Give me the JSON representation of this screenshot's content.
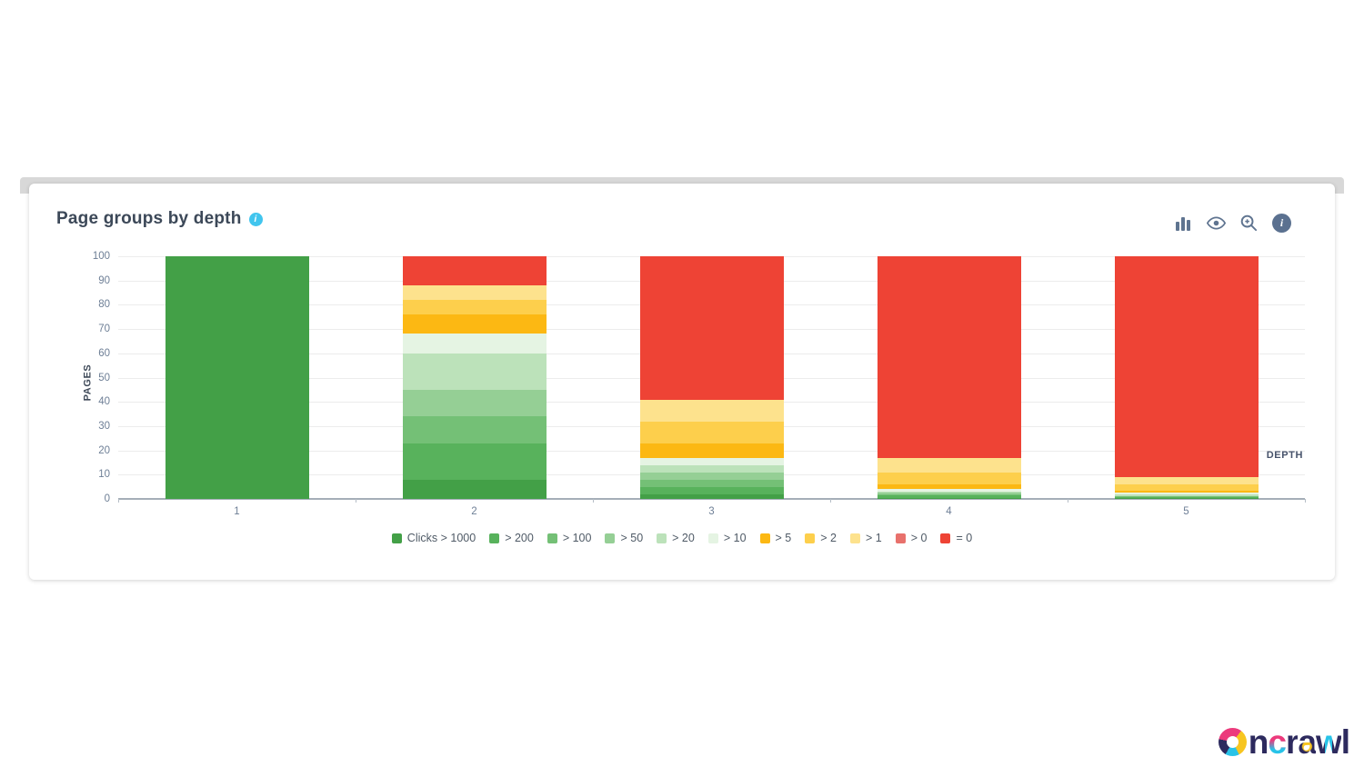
{
  "header": {
    "title": "Page groups by depth",
    "info_icon": "i"
  },
  "toolbar": {
    "icons": [
      "bar-chart-icon",
      "eye-icon",
      "zoom-in-icon",
      "info-icon"
    ],
    "info_glyph": "i"
  },
  "chart_data": {
    "type": "bar",
    "stacked": true,
    "title": "Page groups by depth",
    "xlabel": "DEPTH",
    "ylabel": "PAGES",
    "ylim": [
      0,
      100
    ],
    "ytick_step": 10,
    "yticks": [
      0,
      10,
      20,
      30,
      40,
      50,
      60,
      70,
      80,
      90,
      100
    ],
    "grid": true,
    "legend_position": "bottom",
    "categories": [
      "1",
      "2",
      "3",
      "4",
      "5"
    ],
    "series": [
      {
        "name": "Clicks > 1000",
        "color": "#43a047",
        "values": [
          100,
          8,
          2,
          0.5,
          0.3
        ]
      },
      {
        "name": "> 200",
        "color": "#58b25c",
        "values": [
          0,
          15,
          3,
          1,
          0.4
        ]
      },
      {
        "name": "> 100",
        "color": "#74c076",
        "values": [
          0,
          11,
          3,
          0.5,
          0.3
        ]
      },
      {
        "name": "> 50",
        "color": "#95cf95",
        "values": [
          0,
          11,
          3,
          0.5,
          0.3
        ]
      },
      {
        "name": "> 20",
        "color": "#bce2ba",
        "values": [
          0,
          15,
          3,
          0.5,
          0.5
        ]
      },
      {
        "name": "> 10",
        "color": "#e5f4e3",
        "values": [
          0,
          8,
          3,
          1,
          0.7
        ]
      },
      {
        "name": "> 5",
        "color": "#fcb813",
        "values": [
          0,
          8,
          6,
          2,
          1
        ]
      },
      {
        "name": "> 2",
        "color": "#fdcf4c",
        "values": [
          0,
          6,
          9,
          5,
          2.5
        ]
      },
      {
        "name": "> 1",
        "color": "#fde28d",
        "values": [
          0,
          6,
          9,
          6,
          3
        ]
      },
      {
        "name": "> 0",
        "color": "#e8716c",
        "values": [
          0,
          0,
          0,
          0,
          0
        ]
      },
      {
        "name": "= 0",
        "color": "#ee4335",
        "values": [
          0,
          12,
          59,
          83,
          91
        ]
      }
    ]
  },
  "logo": {
    "letter_o": "o",
    "rest_n": "n",
    "rest_c": "c",
    "rest_r": "r",
    "rest_a": "a",
    "rest_w": "w",
    "rest_l": "l"
  }
}
